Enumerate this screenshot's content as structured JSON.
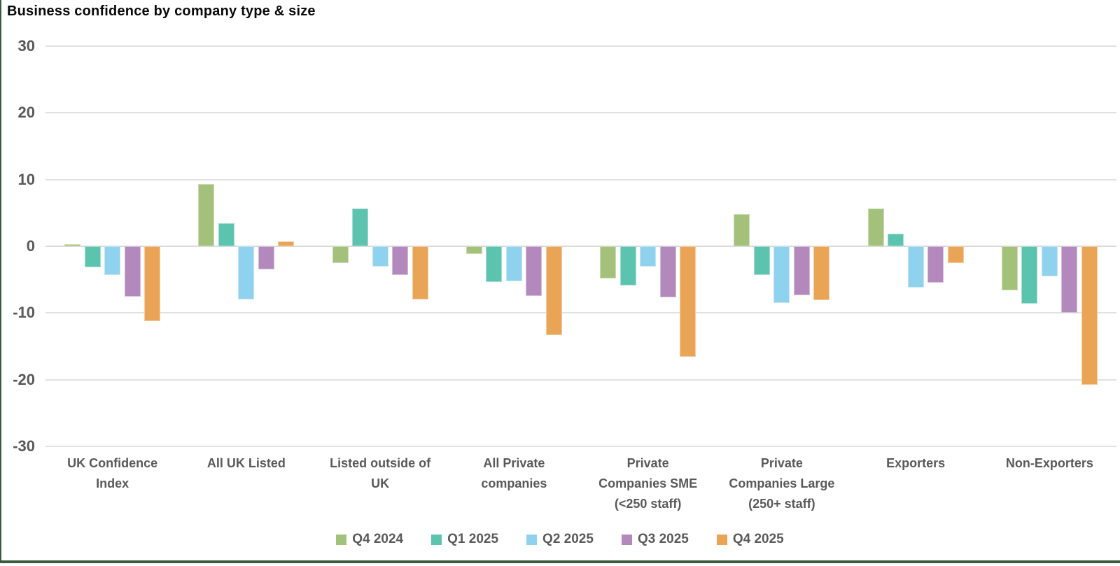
{
  "title": "Business confidence by company type & size",
  "colors": {
    "grid": "#e1e1e1",
    "axis_text": "#595959",
    "title_text": "#0a0a0a",
    "frame_border": "#3b5b41"
  },
  "chart_data": {
    "type": "bar",
    "title": "Business confidence by company type & size",
    "categories": [
      "UK Confidence\nIndex",
      "All UK Listed",
      "Listed outside of\nUK",
      "All Private\ncompanies",
      "Private\nCompanies SME\n(<250 staff)",
      "Private\nCompanies Large\n(250+ staff)",
      "Exporters",
      "Non-Exporters"
    ],
    "series": [
      {
        "name": "Q4 2024",
        "color": "#a3c17a",
        "values": [
          0.3,
          9.3,
          -2.5,
          -1.2,
          -4.8,
          4.8,
          5.7,
          -6.6
        ]
      },
      {
        "name": "Q1 2025",
        "color": "#5cc3af",
        "values": [
          -3.1,
          3.5,
          5.7,
          -5.3,
          -5.9,
          -4.3,
          1.9,
          -8.6
        ]
      },
      {
        "name": "Q2 2025",
        "color": "#8ed2ee",
        "values": [
          -4.3,
          -8.0,
          -3.0,
          -5.2,
          -3.0,
          -8.5,
          -6.2,
          -4.5
        ]
      },
      {
        "name": "Q3 2025",
        "color": "#b288bd",
        "values": [
          -7.5,
          -3.5,
          -4.3,
          -7.4,
          -7.7,
          -7.3,
          -5.5,
          -10.0
        ]
      },
      {
        "name": "Q4 2025",
        "color": "#e9a456",
        "values": [
          -11.2,
          0.7,
          -8.0,
          -13.3,
          -16.6,
          -8.1,
          -2.5,
          -20.8
        ]
      }
    ],
    "ylim": [
      -30,
      30
    ],
    "y_ticks": [
      30,
      20,
      10,
      0,
      -10,
      -20,
      -30
    ],
    "grid": true,
    "legend_position": "bottom",
    "xlabel": "",
    "ylabel": ""
  }
}
